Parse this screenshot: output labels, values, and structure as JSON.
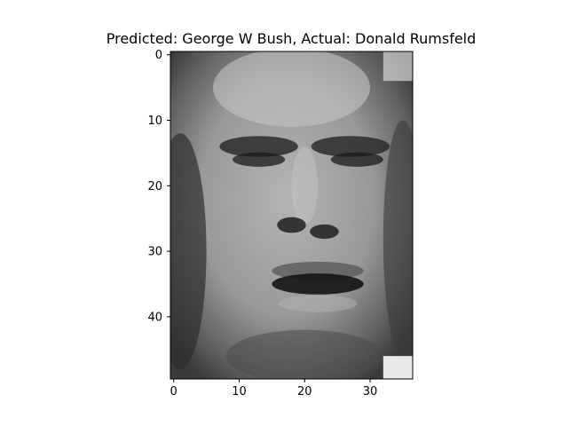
{
  "chart_data": {
    "type": "heatmap",
    "title": "Predicted: George W Bush, Actual: Donald Rumsfeld",
    "colormap": "gray",
    "image_grid": [
      37,
      50
    ],
    "xlim": [
      -0.5,
      36.5
    ],
    "ylim": [
      49.5,
      -0.5
    ],
    "xticks": [
      0,
      10,
      20,
      30
    ],
    "yticks": [
      0,
      10,
      20,
      30,
      40
    ],
    "grid": false,
    "colors": {
      "background": "#ffffff",
      "axes": "#000000"
    }
  }
}
